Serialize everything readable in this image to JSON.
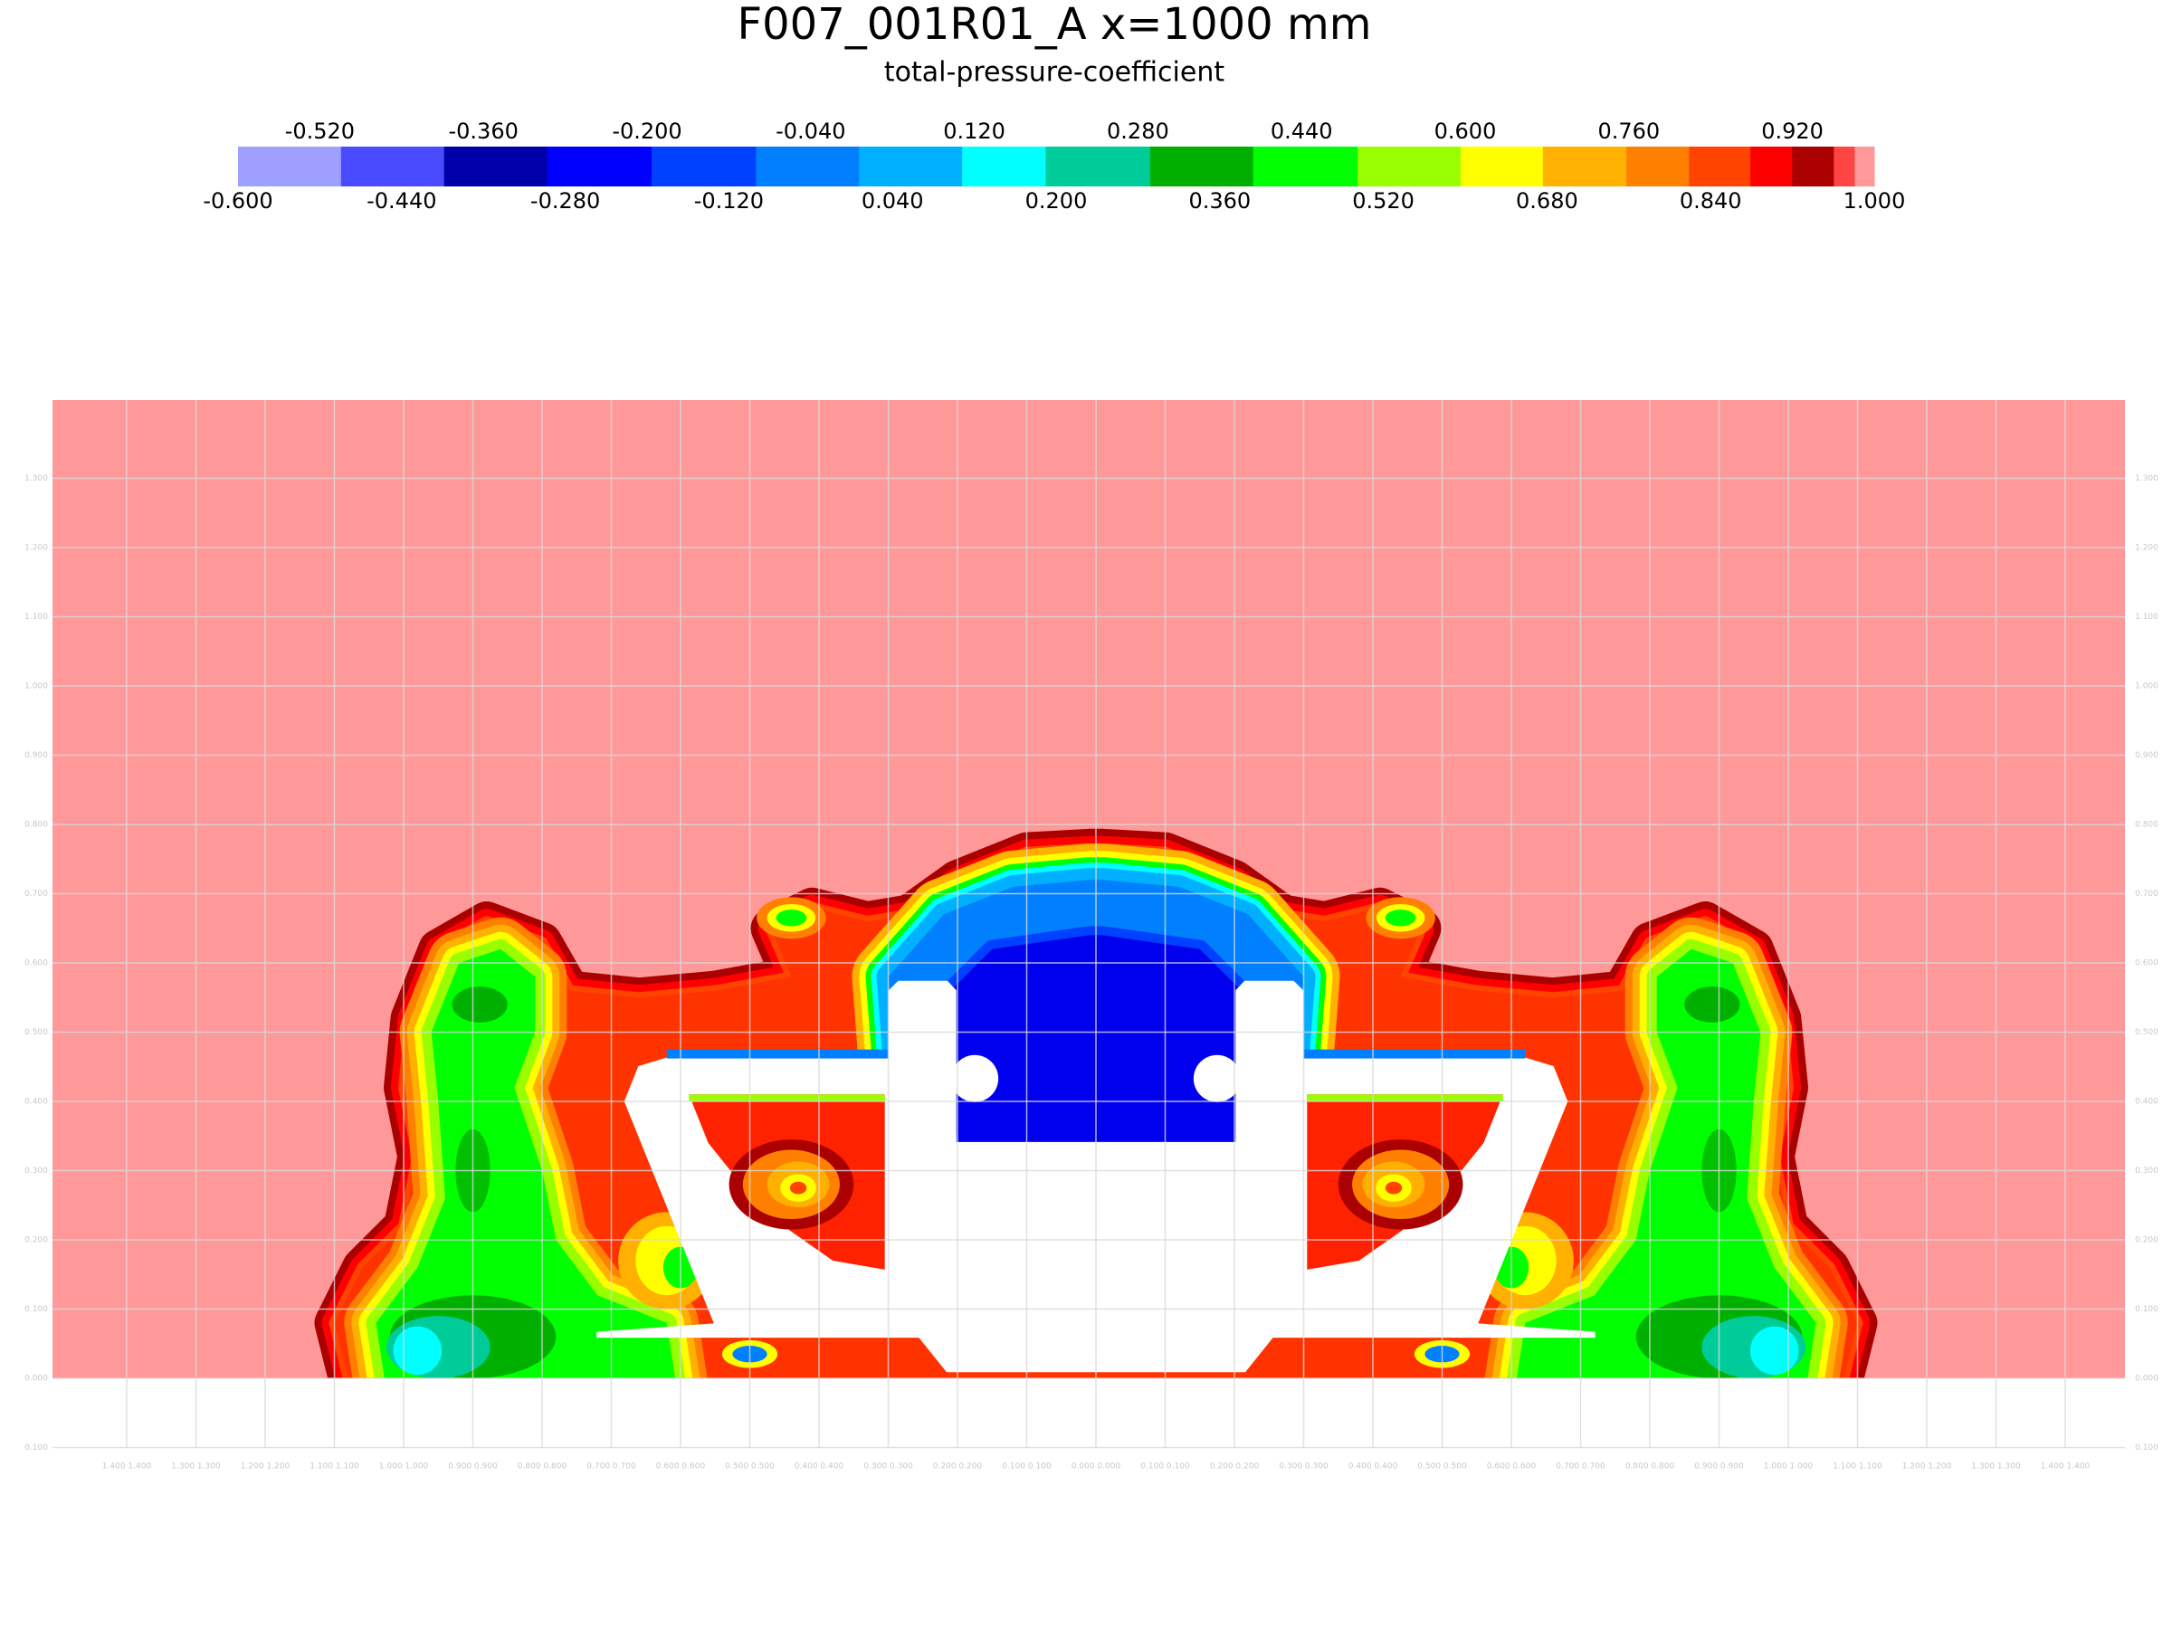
{
  "header": {
    "title": "F007_001R01_A x=1000 mm",
    "subtitle": "total-pressure-coefficient"
  },
  "colorbar": {
    "top_labels": [
      "-0.520",
      "-0.360",
      "-0.200",
      "-0.040",
      "0.120",
      "0.280",
      "0.440",
      "0.600",
      "0.760",
      "0.920"
    ],
    "bottom_labels": [
      "-0.600",
      "-0.440",
      "-0.280",
      "-0.120",
      "0.040",
      "0.200",
      "0.360",
      "0.520",
      "0.680",
      "0.840",
      "1.000"
    ],
    "colors": [
      "#9f9fff",
      "#4a4aff",
      "#0000aa",
      "#0000ff",
      "#0040ff",
      "#0080ff",
      "#00b0ff",
      "#00ffff",
      "#00cc99",
      "#00b000",
      "#00ff00",
      "#99ff00",
      "#ffff00",
      "#ffb000",
      "#ff8000",
      "#ff4400",
      "#ff0000",
      "#aa0000",
      "#ff4444",
      "#ff9999"
    ]
  },
  "axes": {
    "y_labels": [
      "1.300",
      "1.200",
      "1.100",
      "1.000",
      "0.900",
      "0.800",
      "0.700",
      "0.600",
      "0.500",
      "0.400",
      "0.300",
      "0.200",
      "0.100",
      "0.000",
      "0.100"
    ],
    "x_labels": [
      "1.400 1.400",
      "1.300 1.300",
      "1.200 1.200",
      "1.100 1.100",
      "1.000 1.000",
      "0.900 0.900",
      "0.800 0.800",
      "0.700 0.700",
      "0.600 0.600",
      "0.500 0.500",
      "0.400 0.400",
      "0.300 0.300",
      "0.200 0.200",
      "0.100 0.100",
      "0.000 0.000",
      "0.100 0.100",
      "0.200 0.200",
      "0.300 0.300",
      "0.400 0.400",
      "0.500 0.500",
      "0.600 0.600",
      "0.700 0.700",
      "0.800 0.800",
      "0.900 0.900",
      "1.000 1.000",
      "1.100 1.100",
      "1.200 1.200",
      "1.300 1.300",
      "1.400 1.400"
    ]
  }
}
